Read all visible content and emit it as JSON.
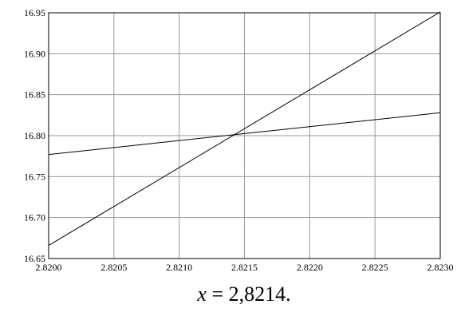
{
  "chart_data": {
    "type": "line",
    "title": "",
    "xlabel": "",
    "ylabel": "",
    "xlim": [
      2.82,
      2.823
    ],
    "ylim": [
      16.65,
      16.95
    ],
    "grid": true,
    "legend": "none",
    "x_ticks": [
      "2.8200",
      "2.8205",
      "2.8210",
      "2.8215",
      "2.8220",
      "2.8225",
      "2.8230"
    ],
    "y_ticks": [
      "16.65",
      "16.70",
      "16.75",
      "16.80",
      "16.85",
      "16.90",
      "16.95"
    ],
    "series": [
      {
        "values": [
          [
            2.82,
            16.666
          ],
          [
            2.823,
            16.951
          ]
        ]
      },
      {
        "values": [
          [
            2.82,
            16.777
          ],
          [
            2.823,
            16.828
          ]
        ]
      }
    ]
  },
  "caption": {
    "variable": "x",
    "equals": " = 2,8214."
  },
  "colors": {
    "line": "#000000",
    "grid": "#999999",
    "frame": "#000000"
  }
}
